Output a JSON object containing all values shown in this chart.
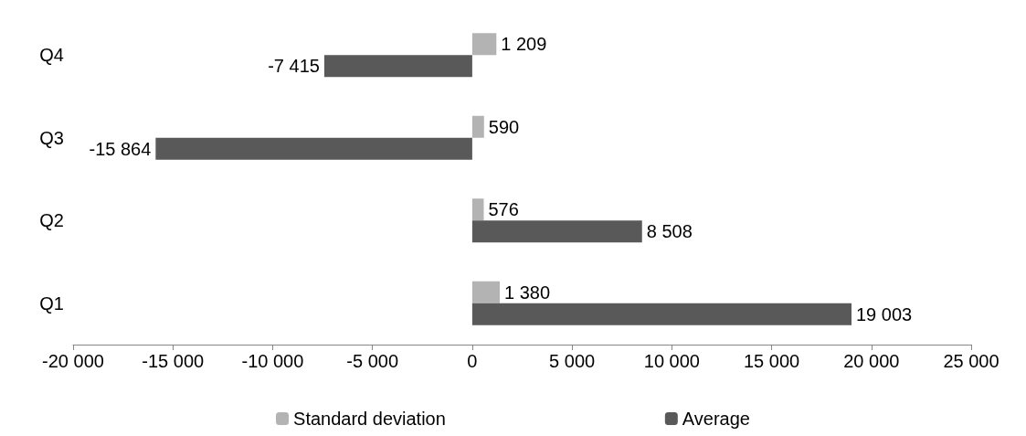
{
  "chart_data": {
    "type": "bar",
    "orientation": "horizontal",
    "categories": [
      "Q4",
      "Q3",
      "Q2",
      "Q1"
    ],
    "series": [
      {
        "name": "Standard deviation",
        "color": "#b3b3b3",
        "values": [
          1209,
          590,
          576,
          1380
        ],
        "value_labels": [
          "1 209",
          "590",
          "576",
          "1 380"
        ]
      },
      {
        "name": "Average",
        "color": "#595959",
        "values": [
          -7415,
          -15864,
          8508,
          19003
        ],
        "value_labels": [
          "-7 415",
          "-15 864",
          "8 508",
          "19 003"
        ]
      }
    ],
    "xlim": [
      -20000,
      25000
    ],
    "xticks": [
      {
        "value": -20000,
        "label": "-20 000"
      },
      {
        "value": -15000,
        "label": "-15 000"
      },
      {
        "value": -10000,
        "label": "-10 000"
      },
      {
        "value": -5000,
        "label": "-5 000"
      },
      0,
      {
        "value": 5000,
        "label": "5 000"
      },
      {
        "value": 10000,
        "label": "10 000"
      },
      {
        "value": 15000,
        "label": "15 000"
      },
      {
        "value": 20000,
        "label": "20 000"
      },
      {
        "value": 25000,
        "label": "25 000"
      }
    ],
    "grid": false,
    "legend": "bottom"
  }
}
